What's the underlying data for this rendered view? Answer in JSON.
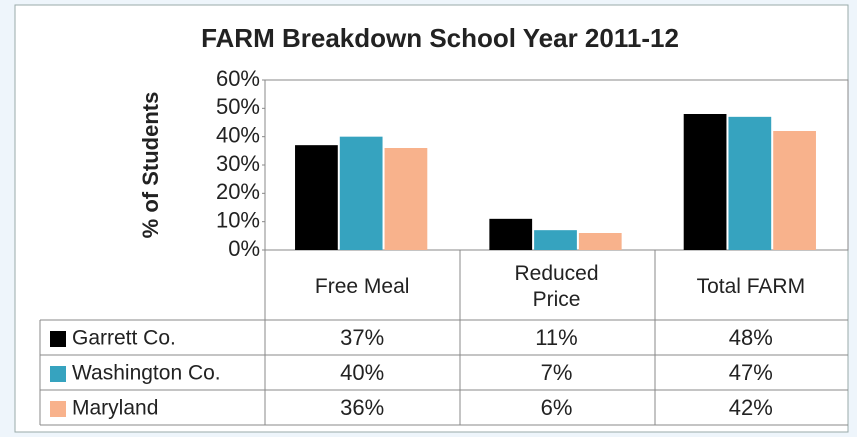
{
  "chart_data": {
    "type": "bar",
    "title": "FARM Breakdown School Year 2011-12",
    "y_label": "% of Students",
    "categories": [
      "Free Meal",
      "Reduced Price",
      "Total FARM"
    ],
    "series": [
      {
        "name": "Garrett Co.",
        "color": "#000000",
        "values": [
          37,
          11,
          48
        ],
        "value_labels": [
          "37%",
          "11%",
          "48%"
        ]
      },
      {
        "name": "Washington Co.",
        "color": "#36a3bf",
        "values": [
          40,
          7,
          47
        ],
        "value_labels": [
          "40%",
          "7%",
          "47%"
        ]
      },
      {
        "name": "Maryland",
        "color": "#f8b28c",
        "values": [
          36,
          6,
          42
        ],
        "value_labels": [
          "36%",
          "6%",
          "42%"
        ]
      }
    ],
    "ylim": [
      0,
      60
    ],
    "yticks": [
      {
        "value": 0,
        "label": "0%"
      },
      {
        "value": 10,
        "label": "10%"
      },
      {
        "value": 20,
        "label": "20%"
      },
      {
        "value": 30,
        "label": "30%"
      },
      {
        "value": 40,
        "label": "40%"
      },
      {
        "value": 50,
        "label": "50%"
      },
      {
        "value": 60,
        "label": "60%"
      }
    ]
  }
}
